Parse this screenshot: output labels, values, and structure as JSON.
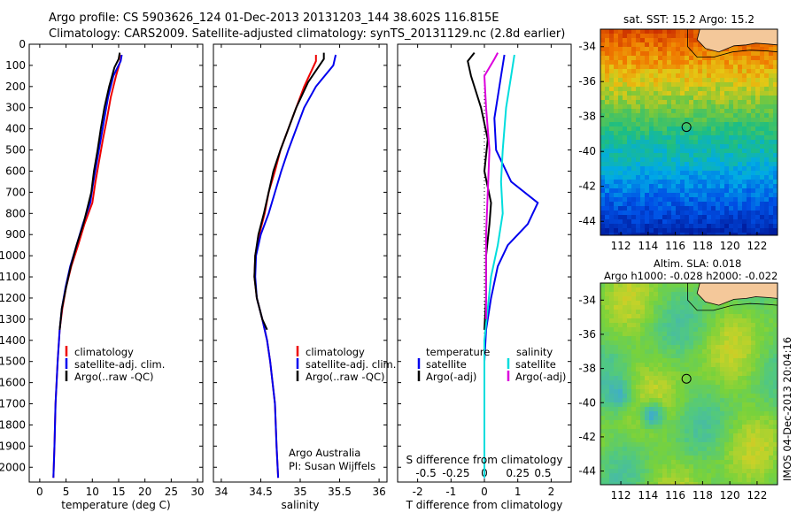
{
  "header": {
    "title_line1": "Argo profile: CS 5903626_124 01-Dec-2013 20131203_144 38.602S 116.815E",
    "title_line2": "Climatology: CARS2009. Satellite-adjusted climatology: synTS_20131129.nc (2.8d earlier)"
  },
  "chart_data": [
    {
      "type": "line",
      "panel": "temperature",
      "xlabel": "temperature (deg C)",
      "ylabel": "",
      "xlim": [
        -2,
        31
      ],
      "ylim": [
        2070,
        0
      ],
      "xticks": [
        0,
        5,
        10,
        15,
        20,
        25,
        30
      ],
      "yticks": [
        0,
        100,
        200,
        300,
        400,
        500,
        600,
        700,
        800,
        900,
        1000,
        1100,
        1200,
        1300,
        1400,
        1500,
        1600,
        1700,
        1800,
        1900,
        2000
      ],
      "legend": [
        "climatology",
        "satellite-adj. clim.",
        "Argo(..raw -QC)"
      ],
      "legend_colors": [
        "#ee0000",
        "#0000ee",
        "#000000"
      ],
      "series": [
        {
          "name": "climatology",
          "color": "#ee0000",
          "points": [
            [
              15.5,
              50
            ],
            [
              15.3,
              80
            ],
            [
              14.5,
              150
            ],
            [
              13.5,
              250
            ],
            [
              12.8,
              350
            ],
            [
              12.0,
              450
            ],
            [
              11.3,
              550
            ],
            [
              10.6,
              650
            ],
            [
              10.0,
              750
            ],
            [
              8.5,
              850
            ],
            [
              7.3,
              950
            ],
            [
              6.0,
              1050
            ],
            [
              5.0,
              1150
            ],
            [
              4.3,
              1250
            ],
            [
              3.8,
              1350
            ],
            [
              3.4,
              1500
            ],
            [
              3.0,
              1700
            ],
            [
              2.8,
              1900
            ],
            [
              2.6,
              2050
            ]
          ]
        },
        {
          "name": "satellite-adj. clim.",
          "color": "#0000ee",
          "points": [
            [
              15.6,
              50
            ],
            [
              15.4,
              80
            ],
            [
              14.0,
              150
            ],
            [
              13.0,
              250
            ],
            [
              12.3,
              350
            ],
            [
              11.6,
              450
            ],
            [
              10.9,
              550
            ],
            [
              10.2,
              650
            ],
            [
              9.6,
              750
            ],
            [
              8.2,
              850
            ],
            [
              7.0,
              950
            ],
            [
              5.8,
              1050
            ],
            [
              4.9,
              1150
            ],
            [
              4.2,
              1250
            ],
            [
              3.8,
              1350
            ],
            [
              3.4,
              1500
            ],
            [
              3.0,
              1700
            ],
            [
              2.8,
              1900
            ],
            [
              2.6,
              2050
            ]
          ]
        },
        {
          "name": "Argo(..raw -QC)",
          "color": "#000000",
          "points": [
            [
              15.2,
              40
            ],
            [
              15.0,
              70
            ],
            [
              14.2,
              110
            ],
            [
              13.2,
              200
            ],
            [
              12.3,
              300
            ],
            [
              11.6,
              400
            ],
            [
              11.0,
              500
            ],
            [
              10.3,
              600
            ],
            [
              9.8,
              700
            ],
            [
              8.3,
              850
            ],
            [
              7.0,
              950
            ],
            [
              5.9,
              1050
            ],
            [
              5.0,
              1150
            ],
            [
              4.2,
              1250
            ],
            [
              3.8,
              1350
            ]
          ]
        }
      ]
    },
    {
      "type": "line",
      "panel": "salinity",
      "xlabel": "salinity",
      "ylabel": "",
      "xlim": [
        33.9,
        36.1
      ],
      "ylim": [
        2070,
        0
      ],
      "xticks": [
        34,
        34.5,
        35,
        35.5,
        36
      ],
      "legend": [
        "climatology",
        "satellite-adj. clim.",
        "Argo(..raw -QC)"
      ],
      "legend_colors": [
        "#ee0000",
        "#0000ee",
        "#000000"
      ],
      "annotation": [
        "Argo Australia",
        "PI: Susan Wijffels"
      ],
      "series": [
        {
          "name": "climatology",
          "color": "#ee0000",
          "points": [
            [
              35.2,
              50
            ],
            [
              35.2,
              80
            ],
            [
              35.05,
              200
            ],
            [
              34.95,
              300
            ],
            [
              34.85,
              400
            ],
            [
              34.75,
              500
            ],
            [
              34.68,
              600
            ],
            [
              34.6,
              700
            ],
            [
              34.55,
              800
            ],
            [
              34.48,
              900
            ],
            [
              34.43,
              1000
            ],
            [
              34.42,
              1100
            ],
            [
              34.45,
              1200
            ],
            [
              34.52,
              1300
            ],
            [
              34.58,
              1400
            ],
            [
              34.62,
              1500
            ],
            [
              34.65,
              1600
            ],
            [
              34.68,
              1700
            ],
            [
              34.7,
              1900
            ],
            [
              34.72,
              2050
            ]
          ]
        },
        {
          "name": "satellite-adj. clim.",
          "color": "#0000ee",
          "points": [
            [
              35.45,
              50
            ],
            [
              35.42,
              100
            ],
            [
              35.2,
              200
            ],
            [
              35.05,
              300
            ],
            [
              34.95,
              400
            ],
            [
              34.85,
              500
            ],
            [
              34.76,
              600
            ],
            [
              34.68,
              700
            ],
            [
              34.6,
              800
            ],
            [
              34.5,
              900
            ],
            [
              34.44,
              1000
            ],
            [
              34.43,
              1100
            ],
            [
              34.45,
              1200
            ],
            [
              34.52,
              1300
            ],
            [
              34.58,
              1400
            ],
            [
              34.62,
              1500
            ],
            [
              34.65,
              1600
            ],
            [
              34.68,
              1700
            ],
            [
              34.7,
              1900
            ],
            [
              34.72,
              2050
            ]
          ]
        },
        {
          "name": "Argo(..raw -QC)",
          "color": "#000000",
          "points": [
            [
              35.3,
              40
            ],
            [
              35.3,
              70
            ],
            [
              35.1,
              180
            ],
            [
              34.95,
              300
            ],
            [
              34.85,
              400
            ],
            [
              34.75,
              500
            ],
            [
              34.66,
              600
            ],
            [
              34.6,
              700
            ],
            [
              34.54,
              800
            ],
            [
              34.47,
              900
            ],
            [
              34.43,
              1000
            ],
            [
              34.42,
              1100
            ],
            [
              34.45,
              1200
            ],
            [
              34.52,
              1300
            ],
            [
              34.58,
              1350
            ]
          ]
        }
      ]
    },
    {
      "type": "line",
      "panel": "difference",
      "xlabel": "T difference from climatology",
      "xlabel_top": "S difference from climatology",
      "ylabel": "",
      "xlim": [
        -2.6,
        2.6
      ],
      "ylim": [
        2070,
        0
      ],
      "xticks": [
        "-2",
        "-1",
        "0",
        "1",
        "2"
      ],
      "xticks_top": [
        "-0.5",
        "-0.25",
        "0",
        "0.25",
        "0.5"
      ],
      "legend_left_title": "temperature",
      "legend_right_title": "salinity",
      "legend": [
        "satellite",
        "Argo(-adj)",
        "satellite",
        "Argo(-adj)"
      ],
      "legend_colors": [
        "#0000ee",
        "#000000",
        "#00dddd",
        "#dd00dd"
      ],
      "series": [
        {
          "name": "T satellite",
          "color": "#0000ee",
          "points": [
            [
              0.6,
              50
            ],
            [
              0.5,
              150
            ],
            [
              0.3,
              350
            ],
            [
              0.35,
              500
            ],
            [
              0.8,
              650
            ],
            [
              1.6,
              750
            ],
            [
              1.3,
              850
            ],
            [
              0.7,
              950
            ],
            [
              0.4,
              1050
            ],
            [
              0.2,
              1200
            ],
            [
              0.05,
              1350
            ],
            [
              0.0,
              1500
            ],
            [
              0.0,
              2050
            ]
          ]
        },
        {
          "name": "T Argo(-adj)",
          "color": "#000000",
          "points": [
            [
              -0.3,
              40
            ],
            [
              -0.5,
              80
            ],
            [
              -0.4,
              150
            ],
            [
              -0.1,
              300
            ],
            [
              0.1,
              450
            ],
            [
              0.0,
              600
            ],
            [
              0.2,
              750
            ],
            [
              0.15,
              850
            ],
            [
              0.05,
              1000
            ],
            [
              0.05,
              1200
            ],
            [
              0.0,
              1350
            ]
          ]
        },
        {
          "name": "S satellite",
          "color": "#00dddd",
          "points": [
            [
              0.9,
              50
            ],
            [
              0.8,
              150
            ],
            [
              0.65,
              300
            ],
            [
              0.55,
              500
            ],
            [
              0.5,
              650
            ],
            [
              0.55,
              800
            ],
            [
              0.4,
              950
            ],
            [
              0.2,
              1100
            ],
            [
              0.1,
              1250
            ],
            [
              0.0,
              1400
            ],
            [
              0.0,
              2050
            ]
          ]
        },
        {
          "name": "S Argo(-adj)",
          "color": "#dd00dd",
          "points": [
            [
              0.4,
              40
            ],
            [
              0.3,
              70
            ],
            [
              0.0,
              150
            ],
            [
              0.05,
              300
            ],
            [
              0.15,
              500
            ],
            [
              0.1,
              700
            ],
            [
              0.05,
              900
            ],
            [
              0.05,
              1100
            ],
            [
              0.05,
              1300
            ]
          ]
        }
      ]
    },
    {
      "type": "heatmap",
      "panel": "sst-map",
      "title": "sat. SST: 15.2  Argo: 15.2",
      "xticks": [
        "112",
        "114",
        "116",
        "118",
        "120",
        "122"
      ],
      "yticks": [
        "-34",
        "-36",
        "-38",
        "-40",
        "-42",
        "-44"
      ],
      "xlim": [
        110.5,
        123.5
      ],
      "ylim": [
        -44.8,
        -33.0
      ],
      "marker": [
        116.815,
        -38.602
      ]
    },
    {
      "type": "heatmap",
      "panel": "sla-map",
      "title_line1": "Altim. SLA: 0.018",
      "title_line2": "Argo h1000: -0.028 h2000: -0.022",
      "xticks": [
        "112",
        "114",
        "116",
        "118",
        "120",
        "122"
      ],
      "yticks": [
        "-34",
        "-36",
        "-38",
        "-40",
        "-42",
        "-44"
      ],
      "xlim": [
        110.5,
        123.5
      ],
      "ylim": [
        -44.8,
        -33.0
      ],
      "marker": [
        116.815,
        -38.602
      ]
    }
  ],
  "footer": {
    "stamp": "IMOS 04-Dec-2013 20:04:16"
  }
}
